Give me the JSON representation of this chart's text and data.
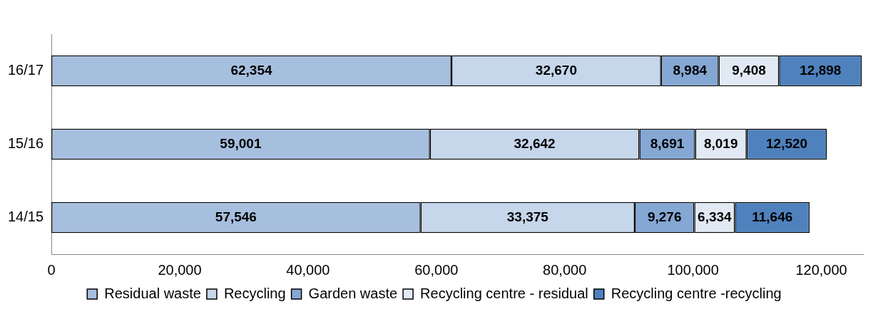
{
  "chart_data": {
    "type": "bar",
    "orientation": "horizontal",
    "stacked": true,
    "categories": [
      "16/17",
      "15/16",
      "14/15"
    ],
    "series": [
      {
        "name": "Residual waste",
        "color": "#a7bfdf",
        "values": [
          62354,
          59001,
          57546
        ],
        "value_labels": [
          "62,354",
          "59,001",
          "57,546"
        ]
      },
      {
        "name": "Recycling",
        "color": "#c6d6eb",
        "values": [
          32670,
          32642,
          33375
        ],
        "value_labels": [
          "32,670",
          "32,642",
          "33,375"
        ]
      },
      {
        "name": "Garden waste",
        "color": "#85a7d3",
        "values": [
          8984,
          8691,
          9276
        ],
        "value_labels": [
          "8,984",
          "8,691",
          "9,276"
        ]
      },
      {
        "name": "Recycling centre - residual",
        "color": "#e0e9f4",
        "values": [
          9408,
          8019,
          6334
        ],
        "value_labels": [
          "9,408",
          "8,019",
          "6,334"
        ]
      },
      {
        "name": "Recycling centre -recycling",
        "color": "#4f81bd",
        "values": [
          12898,
          12520,
          11646
        ],
        "value_labels": [
          "12,898",
          "12,520",
          "11,646"
        ]
      }
    ],
    "xlim": [
      0,
      126500
    ],
    "xticks": [
      0,
      {
        "value": 20000,
        "label": "20,000"
      },
      {
        "value": 40000,
        "label": "40,000"
      },
      {
        "value": 60000,
        "label": "60,000"
      },
      {
        "value": 80000,
        "label": "80,000"
      },
      {
        "value": 100000,
        "label": "100,000"
      },
      {
        "value": 120000,
        "label": "120,000"
      }
    ],
    "grid": false,
    "legend": "bottom"
  }
}
